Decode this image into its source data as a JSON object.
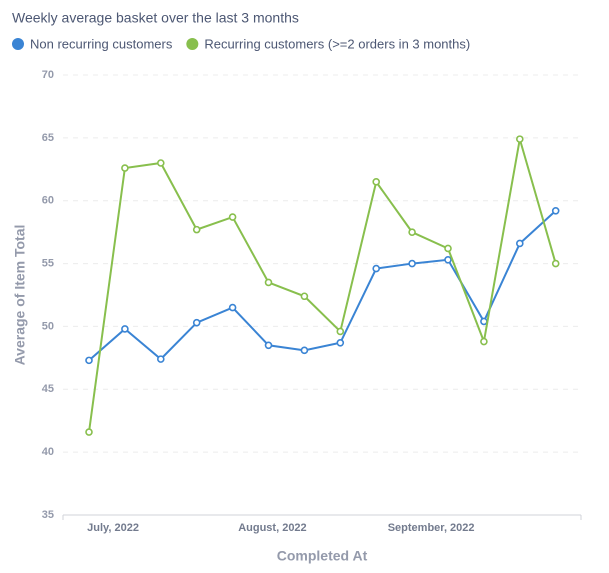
{
  "chart_data": {
    "type": "line",
    "title": "Weekly average basket over the last 3 months",
    "x_label": "Completed At",
    "y_label": "Average of Item Total",
    "categories": [
      null,
      null,
      null,
      null,
      null,
      null,
      null,
      null,
      null,
      null,
      null,
      null,
      null,
      null
    ],
    "xticks": [
      {
        "value": 0.67,
        "label": "July, 2022"
      },
      {
        "value": 5.11,
        "label": "August, 2022"
      },
      {
        "value": 9.53,
        "label": "September, 2022"
      }
    ],
    "series": [
      {
        "name": "Non recurring customers",
        "color": "#3a84d4",
        "values": [
          47.3,
          49.8,
          47.4,
          50.3,
          51.5,
          48.5,
          48.1,
          48.7,
          54.6,
          55.0,
          55.3,
          50.4,
          56.6,
          59.2
        ]
      },
      {
        "name": "Recurring customers (>=2 orders in 3 months)",
        "color": "#88bf4d",
        "values": [
          41.6,
          62.6,
          63.0,
          57.7,
          58.7,
          53.5,
          52.4,
          49.6,
          61.5,
          57.5,
          56.2,
          48.8,
          64.9,
          55.0
        ]
      }
    ],
    "ylim": [
      35,
      70
    ],
    "yticks": [
      35,
      40,
      45,
      50,
      55,
      60,
      65,
      70
    ],
    "grid": true
  }
}
